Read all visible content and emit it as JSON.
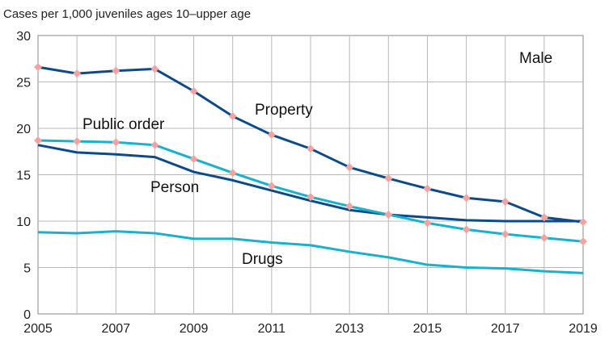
{
  "chart_data": {
    "type": "line",
    "title": "",
    "ylabel": "Cases per 1,000 juveniles ages 10–upper age",
    "xlabel": "",
    "panel_label": "Male",
    "x": [
      2005,
      2006,
      2007,
      2008,
      2009,
      2010,
      2011,
      2012,
      2013,
      2014,
      2015,
      2016,
      2017,
      2018,
      2019
    ],
    "xticks": [
      "2005",
      "2007",
      "2009",
      "2011",
      "2013",
      "2015",
      "2017",
      "2019"
    ],
    "yticks": [
      "0",
      "5",
      "10",
      "15",
      "20",
      "25",
      "30"
    ],
    "xlim": [
      2005,
      2019
    ],
    "ylim": [
      0,
      30
    ],
    "grid": true,
    "legend": "none",
    "series": [
      {
        "name": "Property",
        "color": "#0d4a8a",
        "markers": true,
        "values": [
          26.6,
          25.9,
          26.2,
          26.4,
          24.0,
          21.3,
          19.3,
          17.8,
          15.8,
          14.6,
          13.5,
          12.5,
          12.1,
          10.4,
          9.9
        ]
      },
      {
        "name": "Public order",
        "color": "#17b2cc",
        "markers": true,
        "values": [
          18.7,
          18.6,
          18.5,
          18.2,
          16.7,
          15.2,
          13.8,
          12.6,
          11.6,
          10.7,
          9.8,
          9.1,
          8.6,
          8.2,
          7.8
        ]
      },
      {
        "name": "Person",
        "color": "#0d4a8a",
        "markers": false,
        "values": [
          18.2,
          17.4,
          17.2,
          16.9,
          15.3,
          14.4,
          13.3,
          12.2,
          11.2,
          10.7,
          10.4,
          10.1,
          10.0,
          10.0,
          10.0
        ]
      },
      {
        "name": "Drugs",
        "color": "#17b2cc",
        "markers": false,
        "values": [
          8.8,
          8.7,
          8.9,
          8.7,
          8.1,
          8.1,
          7.7,
          7.4,
          6.7,
          6.1,
          5.3,
          5.0,
          4.9,
          4.6,
          4.4
        ]
      }
    ],
    "marker_color": "#f4a3a0"
  }
}
